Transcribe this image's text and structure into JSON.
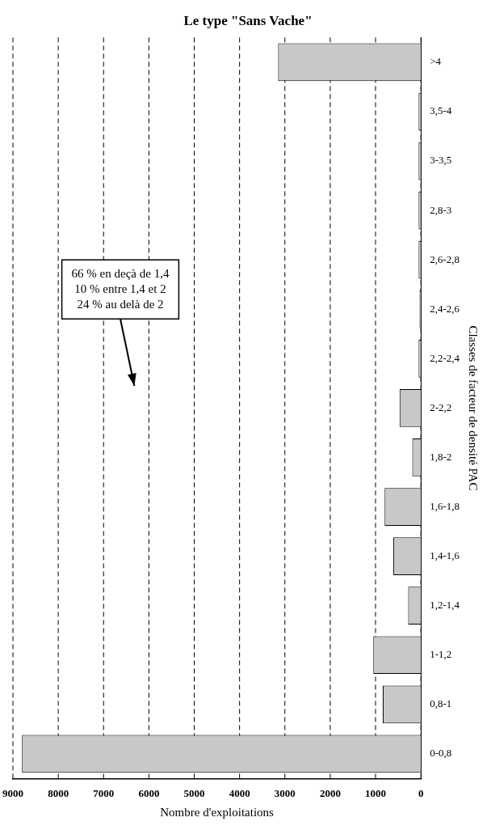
{
  "chart_data": {
    "type": "bar",
    "orientation": "horizontal",
    "title": "Le type \"Sans Vache\"",
    "xlabel": "Nombre d'exploitations",
    "ylabel": "Classes de facteur de densité PAC",
    "categories": [
      ">4",
      "3,5-4",
      "3-3,5",
      "2,8-3",
      "2,6-2,8",
      "2,4-2,6",
      "2,2-2,4",
      "2-2,2",
      "1,8-2",
      "1,6-1,8",
      "1,4-1,6",
      "1,2-1,4",
      "1-1,2",
      "0,8-1",
      "0-0,8"
    ],
    "values": [
      3150,
      50,
      50,
      50,
      50,
      30,
      50,
      470,
      190,
      800,
      610,
      280,
      1050,
      840,
      8800
    ],
    "color": "#c8c8c8",
    "xlim": [
      9000,
      0
    ],
    "xticks": [
      0,
      1000,
      2000,
      3000,
      4000,
      5000,
      6000,
      7000,
      8000,
      9000
    ],
    "grid": "x",
    "legend": false,
    "annotations": [
      "66 % en deçà de 1,4",
      "10 % entre 1,4 et 2",
      "24 % au delà de 2"
    ]
  }
}
